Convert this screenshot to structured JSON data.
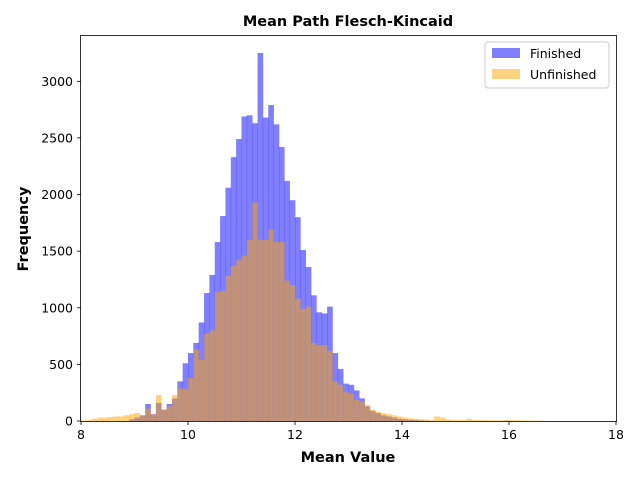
{
  "chart_data": {
    "type": "histogram",
    "title": "Mean Path Flesch-Kincaid",
    "xlabel": "Mean Value",
    "ylabel": "Frequency",
    "xlim": [
      8,
      18
    ],
    "ylim": [
      0,
      3400
    ],
    "xticks": [
      "8",
      "10",
      "12",
      "14",
      "16",
      "18"
    ],
    "yticks": [
      "0",
      "500",
      "1000",
      "1500",
      "2000",
      "2500",
      "3000"
    ],
    "legend_position": "top-right",
    "series": [
      {
        "name": "Finished",
        "color": "#0000ff",
        "opacity": 0.5,
        "bin_width": 0.1,
        "bin_starts": [
          8.9,
          9.0,
          9.1,
          9.2,
          9.3,
          9.4,
          9.5,
          9.6,
          9.7,
          9.8,
          9.9,
          10.0,
          10.1,
          10.2,
          10.3,
          10.4,
          10.5,
          10.6,
          10.7,
          10.8,
          10.9,
          11.0,
          11.1,
          11.2,
          11.3,
          11.4,
          11.5,
          11.6,
          11.7,
          11.8,
          11.9,
          12.0,
          12.1,
          12.2,
          12.3,
          12.4,
          12.5,
          12.6,
          12.7,
          12.8,
          12.9,
          13.0,
          13.1,
          13.2,
          13.3,
          13.4,
          13.5,
          13.6,
          13.7,
          13.8,
          13.9,
          14.0,
          14.1,
          14.2,
          14.3,
          14.4
        ],
        "values": [
          15,
          30,
          50,
          150,
          60,
          160,
          100,
          150,
          200,
          350,
          510,
          600,
          690,
          870,
          1130,
          1290,
          1580,
          1810,
          2060,
          2330,
          2490,
          2690,
          2700,
          2630,
          3250,
          2680,
          2790,
          2620,
          2420,
          2120,
          1950,
          1800,
          1510,
          1360,
          1110,
          960,
          950,
          1010,
          600,
          460,
          330,
          320,
          270,
          200,
          130,
          90,
          70,
          50,
          40,
          30,
          20,
          15,
          10,
          8,
          5,
          3
        ]
      },
      {
        "name": "Unfinished",
        "color": "#ffa500",
        "opacity": 0.5,
        "bin_width": 0.1,
        "bin_starts": [
          8.0,
          8.1,
          8.2,
          8.3,
          8.4,
          8.5,
          8.6,
          8.7,
          8.8,
          8.9,
          9.0,
          9.1,
          9.2,
          9.3,
          9.4,
          9.5,
          9.6,
          9.7,
          9.8,
          9.9,
          10.0,
          10.1,
          10.2,
          10.3,
          10.4,
          10.5,
          10.6,
          10.7,
          10.8,
          10.9,
          11.0,
          11.1,
          11.2,
          11.3,
          11.4,
          11.5,
          11.6,
          11.7,
          11.8,
          11.9,
          12.0,
          12.1,
          12.2,
          12.3,
          12.4,
          12.5,
          12.6,
          12.7,
          12.8,
          12.9,
          13.0,
          13.1,
          13.2,
          13.3,
          13.4,
          13.5,
          13.6,
          13.7,
          13.8,
          13.9,
          14.0,
          14.1,
          14.2,
          14.3,
          14.4,
          14.5,
          14.6,
          14.7,
          14.8,
          14.9,
          15.0,
          15.1,
          15.2,
          15.3,
          15.4,
          15.5,
          15.6,
          15.7,
          15.8,
          15.9,
          16.0,
          16.1,
          16.2,
          16.3,
          16.4,
          16.5
        ],
        "values": [
          5,
          10,
          20,
          30,
          30,
          35,
          40,
          40,
          50,
          60,
          70,
          50,
          110,
          60,
          230,
          100,
          130,
          230,
          290,
          280,
          380,
          630,
          540,
          770,
          800,
          1140,
          1150,
          1280,
          1370,
          1420,
          1460,
          1600,
          1930,
          1600,
          1600,
          1690,
          1580,
          1580,
          1240,
          1200,
          1080,
          990,
          1010,
          690,
          670,
          670,
          620,
          350,
          320,
          260,
          240,
          190,
          170,
          140,
          100,
          80,
          70,
          60,
          50,
          40,
          30,
          25,
          20,
          15,
          12,
          10,
          40,
          30,
          15,
          10,
          8,
          8,
          20,
          10,
          8,
          8,
          6,
          6,
          5,
          10,
          8,
          6,
          5,
          4,
          3,
          2
        ]
      }
    ]
  }
}
